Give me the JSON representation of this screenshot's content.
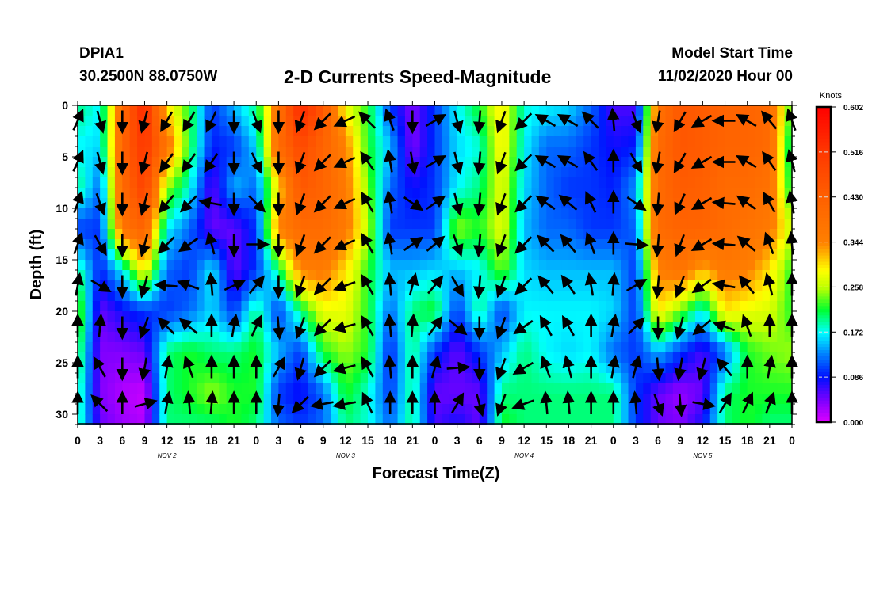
{
  "header": {
    "station": "DPIA1",
    "location": "30.2500N 88.0750W",
    "title": "2-D Currents Speed-Magnitude",
    "start_label": "Model Start Time",
    "start_value": "11/02/2020 Hour 00"
  },
  "chart_data": {
    "type": "heatmap",
    "title": "2-D Currents Speed-Magnitude",
    "xlabel": "Forecast Time(Z)",
    "ylabel": "Depth (ft)",
    "xlim": [
      0,
      96
    ],
    "ylim": [
      31,
      0
    ],
    "x_tick_labels": [
      "0",
      "3",
      "6",
      "9",
      "12",
      "15",
      "18",
      "21",
      "0",
      "3",
      "6",
      "9",
      "12",
      "15",
      "18",
      "21",
      "0",
      "3",
      "6",
      "9",
      "12",
      "15",
      "18",
      "21",
      "0",
      "3",
      "6",
      "9",
      "12",
      "15",
      "18",
      "21",
      "0"
    ],
    "day_labels": [
      {
        "label": "NOV 2",
        "hour": 12
      },
      {
        "label": "NOV 3",
        "hour": 36
      },
      {
        "label": "NOV 4",
        "hour": 60
      },
      {
        "label": "NOV 5",
        "hour": 84
      }
    ],
    "y_ticks": [
      0,
      5,
      10,
      15,
      20,
      25,
      30
    ],
    "y_tick_labels": [
      "0",
      "5",
      "10",
      "15",
      "20",
      "25",
      "30"
    ],
    "colorbar": {
      "unit": "Knots",
      "range": [
        0,
        0.602
      ],
      "tick_values": [
        0.602,
        0.516,
        0.43,
        0.344,
        0.258,
        0.172,
        0.086,
        0.0
      ],
      "tick_labels": [
        "0.602",
        "0.516",
        "0.430",
        "0.344",
        "0.258",
        "0.172",
        "0.086",
        "0.000"
      ],
      "colors": [
        {
          "v": 0.0,
          "c": "#e000ff"
        },
        {
          "v": 0.043,
          "c": "#7a00ff"
        },
        {
          "v": 0.086,
          "c": "#0010ff"
        },
        {
          "v": 0.13,
          "c": "#0080ff"
        },
        {
          "v": 0.172,
          "c": "#00ffff"
        },
        {
          "v": 0.215,
          "c": "#00ff30"
        },
        {
          "v": 0.258,
          "c": "#c0ff00"
        },
        {
          "v": 0.29,
          "c": "#ffff00"
        },
        {
          "v": 0.33,
          "c": "#ffa000"
        },
        {
          "v": 0.344,
          "c": "#ff8000"
        },
        {
          "v": 0.43,
          "c": "#ff6000"
        },
        {
          "v": 0.516,
          "c": "#ff3800"
        },
        {
          "v": 0.602,
          "c": "#ff0000"
        }
      ]
    },
    "speed_grid": {
      "hours": [
        0,
        3,
        6,
        9,
        12,
        15,
        18,
        21,
        24,
        27,
        30,
        33,
        36,
        39,
        42,
        45,
        48,
        51,
        54,
        57,
        60,
        63,
        66,
        69,
        72,
        75,
        78,
        81,
        84,
        87,
        90,
        93,
        96
      ],
      "depths": [
        0,
        4,
        8,
        12,
        16,
        20,
        24,
        28,
        31
      ],
      "values": [
        [
          0.2,
          0.17,
          0.2,
          0.1,
          0.2,
          0.25,
          0.22,
          0.2,
          0.2
        ],
        [
          0.17,
          0.16,
          0.12,
          0.1,
          0.09,
          0.05,
          0.04,
          0.04,
          0.05
        ],
        [
          0.4,
          0.42,
          0.4,
          0.38,
          0.17,
          0.08,
          0.04,
          0.02,
          0.03
        ],
        [
          0.55,
          0.52,
          0.5,
          0.42,
          0.3,
          0.1,
          0.05,
          0.01,
          0.02
        ],
        [
          0.3,
          0.38,
          0.25,
          0.17,
          0.12,
          0.1,
          0.2,
          0.2,
          0.2
        ],
        [
          0.22,
          0.22,
          0.18,
          0.12,
          0.1,
          0.12,
          0.22,
          0.22,
          0.2
        ],
        [
          0.1,
          0.09,
          0.05,
          0.05,
          0.17,
          0.16,
          0.2,
          0.25,
          0.2
        ],
        [
          0.15,
          0.1,
          0.15,
          0.05,
          0.05,
          0.1,
          0.2,
          0.22,
          0.22
        ],
        [
          0.2,
          0.16,
          0.12,
          0.1,
          0.1,
          0.2,
          0.22,
          0.22,
          0.2
        ],
        [
          0.38,
          0.4,
          0.3,
          0.35,
          0.2,
          0.1,
          0.15,
          0.1,
          0.12
        ],
        [
          0.55,
          0.48,
          0.45,
          0.4,
          0.35,
          0.2,
          0.1,
          0.08,
          0.1
        ],
        [
          0.45,
          0.42,
          0.42,
          0.4,
          0.36,
          0.28,
          0.22,
          0.12,
          0.12
        ],
        [
          0.28,
          0.35,
          0.36,
          0.36,
          0.3,
          0.28,
          0.25,
          0.22,
          0.2
        ],
        [
          0.22,
          0.22,
          0.24,
          0.26,
          0.22,
          0.22,
          0.22,
          0.18,
          0.18
        ],
        [
          0.1,
          0.15,
          0.12,
          0.1,
          0.15,
          0.12,
          0.09,
          0.1,
          0.12
        ],
        [
          0.04,
          0.04,
          0.08,
          0.1,
          0.15,
          0.2,
          0.2,
          0.2,
          0.2
        ],
        [
          0.1,
          0.1,
          0.1,
          0.1,
          0.16,
          0.22,
          0.1,
          0.05,
          0.06
        ],
        [
          0.17,
          0.16,
          0.17,
          0.25,
          0.15,
          0.1,
          0.05,
          0.05,
          0.08
        ],
        [
          0.22,
          0.18,
          0.2,
          0.22,
          0.17,
          0.2,
          0.1,
          0.05,
          0.05
        ],
        [
          0.3,
          0.3,
          0.28,
          0.28,
          0.24,
          0.1,
          0.15,
          0.2,
          0.22
        ],
        [
          0.18,
          0.17,
          0.16,
          0.15,
          0.16,
          0.17,
          0.2,
          0.2,
          0.2
        ],
        [
          0.17,
          0.12,
          0.12,
          0.12,
          0.15,
          0.17,
          0.17,
          0.2,
          0.2
        ],
        [
          0.16,
          0.12,
          0.1,
          0.12,
          0.15,
          0.17,
          0.16,
          0.2,
          0.2
        ],
        [
          0.12,
          0.1,
          0.1,
          0.1,
          0.15,
          0.17,
          0.17,
          0.2,
          0.2
        ],
        [
          0.06,
          0.08,
          0.09,
          0.1,
          0.15,
          0.16,
          0.12,
          0.2,
          0.2
        ],
        [
          0.06,
          0.09,
          0.14,
          0.12,
          0.1,
          0.1,
          0.1,
          0.1,
          0.1
        ],
        [
          0.38,
          0.4,
          0.4,
          0.4,
          0.35,
          0.3,
          0.15,
          0.05,
          0.05
        ],
        [
          0.45,
          0.45,
          0.44,
          0.42,
          0.38,
          0.24,
          0.1,
          0.03,
          0.04
        ],
        [
          0.44,
          0.44,
          0.43,
          0.42,
          0.32,
          0.17,
          0.06,
          0.05,
          0.08
        ],
        [
          0.42,
          0.42,
          0.4,
          0.4,
          0.36,
          0.3,
          0.12,
          0.2,
          0.2
        ],
        [
          0.42,
          0.42,
          0.4,
          0.38,
          0.35,
          0.28,
          0.22,
          0.22,
          0.22
        ],
        [
          0.4,
          0.4,
          0.38,
          0.36,
          0.3,
          0.27,
          0.24,
          0.22,
          0.2
        ],
        [
          0.22,
          0.18,
          0.2,
          0.26,
          0.22,
          0.22,
          0.25,
          0.22,
          0.2
        ]
      ]
    },
    "vectors": {
      "hours": [
        0,
        3,
        6,
        9,
        12,
        15,
        18,
        21,
        24,
        27,
        30,
        33,
        36,
        39,
        42,
        45,
        48,
        51,
        54,
        57,
        60,
        63,
        66,
        69,
        72,
        75,
        78,
        81,
        84,
        87,
        90,
        93,
        96
      ],
      "depths": [
        1.5,
        5.5,
        9.5,
        13.5,
        17.5,
        21.5,
        25.5,
        29
      ],
      "direction_deg": [
        [
          25,
          25,
          20,
          20,
          10,
          0,
          0,
          0
        ],
        [
          165,
          165,
          160,
          150,
          120,
          5,
          330,
          315
        ],
        [
          180,
          180,
          180,
          180,
          180,
          180,
          180,
          0
        ],
        [
          195,
          195,
          195,
          195,
          195,
          200,
          190,
          75
        ],
        [
          210,
          215,
          220,
          225,
          275,
          315,
          10,
          10
        ],
        [
          210,
          215,
          225,
          235,
          290,
          310,
          340,
          355
        ],
        [
          205,
          215,
          280,
          345,
          355,
          0,
          0,
          5
        ],
        [
          180,
          180,
          180,
          180,
          65,
          10,
          0,
          0
        ],
        [
          160,
          155,
          135,
          90,
          40,
          25,
          0,
          0
        ],
        [
          180,
          180,
          180,
          180,
          180,
          175,
          30,
          185
        ],
        [
          200,
          200,
          200,
          200,
          200,
          200,
          195,
          225
        ],
        [
          225,
          225,
          225,
          225,
          225,
          225,
          225,
          260
        ],
        [
          245,
          245,
          245,
          245,
          250,
          255,
          255,
          260
        ],
        [
          315,
          325,
          330,
          330,
          330,
          330,
          330,
          335
        ],
        [
          340,
          350,
          350,
          350,
          355,
          355,
          355,
          0
        ],
        [
          180,
          170,
          125,
          55,
          15,
          5,
          0,
          0
        ],
        [
          60,
          60,
          55,
          50,
          40,
          35,
          15,
          0
        ],
        [
          165,
          165,
          165,
          160,
          150,
          130,
          85,
          30
        ],
        [
          185,
          185,
          185,
          185,
          185,
          180,
          180,
          165
        ],
        [
          200,
          200,
          200,
          200,
          200,
          200,
          200,
          200
        ],
        [
          225,
          225,
          225,
          225,
          225,
          235,
          240,
          250
        ],
        [
          300,
          300,
          305,
          315,
          320,
          330,
          340,
          355
        ],
        [
          300,
          300,
          310,
          320,
          325,
          330,
          345,
          355
        ],
        [
          315,
          325,
          335,
          340,
          350,
          0,
          0,
          0
        ],
        [
          355,
          0,
          0,
          0,
          5,
          10,
          10,
          0
        ],
        [
          160,
          150,
          125,
          95,
          60,
          45,
          15,
          355
        ],
        [
          190,
          190,
          185,
          185,
          185,
          180,
          175,
          160
        ],
        [
          210,
          210,
          205,
          200,
          200,
          195,
          190,
          175
        ],
        [
          240,
          240,
          240,
          240,
          235,
          230,
          195,
          100
        ],
        [
          270,
          270,
          275,
          275,
          280,
          290,
          320,
          30
        ],
        [
          300,
          300,
          305,
          310,
          320,
          340,
          0,
          25
        ],
        [
          320,
          325,
          330,
          340,
          345,
          0,
          10,
          20
        ],
        [
          340,
          345,
          350,
          355,
          0,
          0,
          0,
          0
        ]
      ]
    }
  }
}
